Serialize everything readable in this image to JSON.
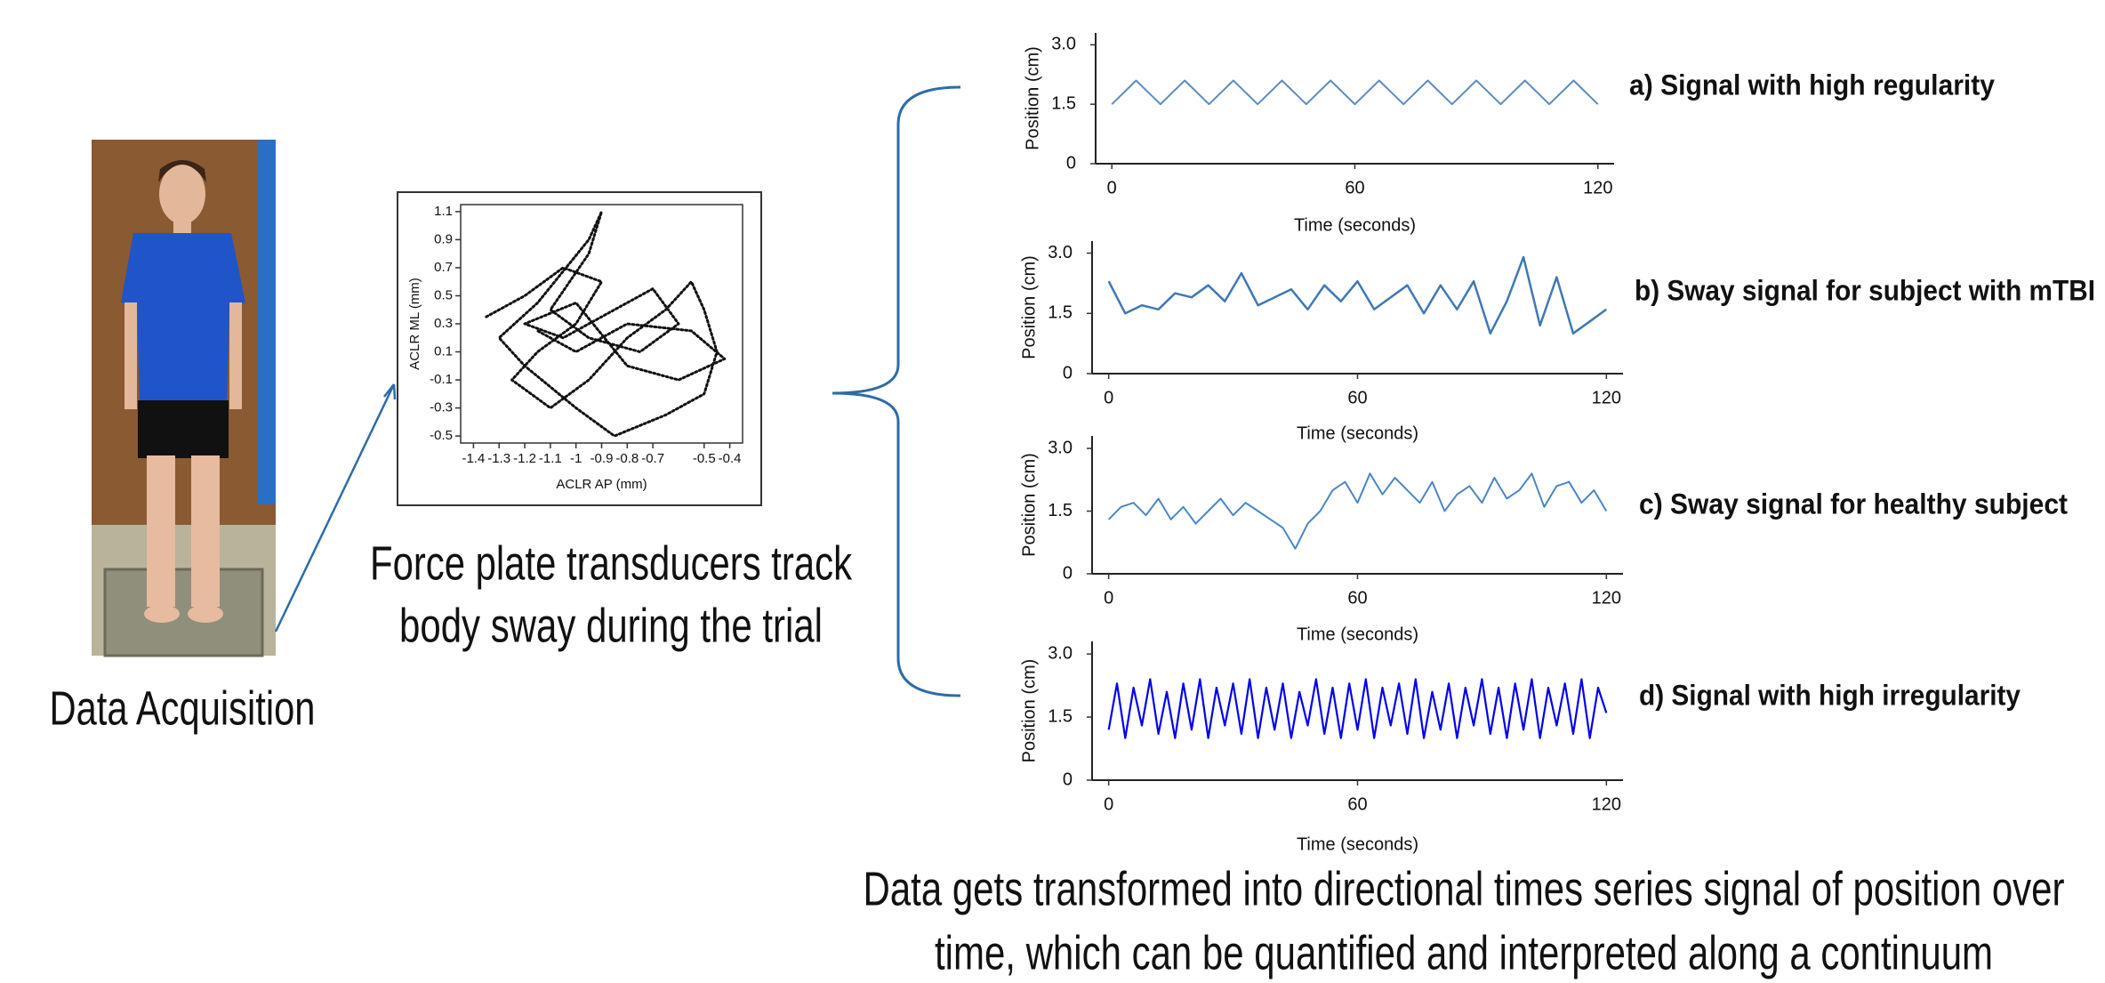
{
  "texts": {
    "acquisition": "Data Acquisition",
    "force_plate_caption": [
      "Force plate transducers track",
      "body sway during the trial"
    ],
    "transform_caption": [
      "Data gets transformed into directional times series signal of position over",
      "time, which can be quantified and interpreted along a continuum"
    ]
  },
  "chart_data": [
    {
      "type": "line",
      "x_label": "ACLR AP (mm)",
      "y_label": "ACLR ML (mm)",
      "color": "#111111",
      "x": [
        -1.35,
        -1.2,
        -1.05,
        -0.9,
        -1.0,
        -1.15,
        -1.25,
        -1.1,
        -0.95,
        -0.8,
        -0.65,
        -0.55,
        -0.5,
        -0.45,
        -0.5,
        -0.65,
        -0.85,
        -1.0,
        -1.2,
        -1.3,
        -1.15,
        -0.95,
        -0.9,
        -0.95,
        -1.1,
        -0.95,
        -0.75,
        -0.6,
        -0.7,
        -0.85,
        -1.05,
        -1.2,
        -1.0,
        -0.8,
        -0.6,
        -0.42,
        -0.55,
        -0.8,
        -1.0,
        -1.15
      ],
      "values": [
        0.35,
        0.5,
        0.7,
        0.6,
        0.3,
        0.1,
        -0.1,
        -0.3,
        -0.1,
        0.2,
        0.4,
        0.6,
        0.4,
        0.1,
        -0.2,
        -0.35,
        -0.5,
        -0.3,
        0.0,
        0.2,
        0.45,
        0.9,
        1.1,
        0.8,
        0.4,
        0.2,
        0.1,
        0.3,
        0.55,
        0.4,
        0.2,
        0.3,
        0.45,
        0.0,
        -0.1,
        0.05,
        0.25,
        0.3,
        0.1,
        0.25
      ],
      "xlim": [
        -1.45,
        -0.35
      ],
      "ylim": [
        -0.55,
        1.15
      ],
      "xticks": [
        -1.4,
        -1.3,
        -1.2,
        -1.1,
        -1,
        -0.9,
        -0.8,
        -0.7,
        -0.5,
        -0.4
      ],
      "yticks": [
        1.1,
        0.9,
        0.7,
        0.5,
        0.3,
        0.1,
        -0.1,
        -0.3,
        -0.5
      ]
    },
    {
      "type": "line",
      "title": "a) Signal with high regularity",
      "x_label": "Time (seconds)",
      "y_label": "Position (cm)",
      "color": "#5b8bc0",
      "x": [
        0,
        3,
        6,
        9,
        12,
        15,
        18,
        21,
        24,
        27,
        30,
        33,
        36,
        39,
        42,
        45,
        48,
        51,
        54,
        57,
        60,
        63,
        66,
        69,
        72,
        75,
        78,
        81,
        84,
        87,
        90,
        93,
        96,
        99,
        102,
        105,
        108,
        111,
        114,
        117,
        120
      ],
      "values": [
        1.5,
        1.8,
        2.1,
        1.8,
        1.5,
        1.8,
        2.1,
        1.8,
        1.5,
        1.8,
        2.1,
        1.8,
        1.5,
        1.8,
        2.1,
        1.8,
        1.5,
        1.8,
        2.1,
        1.8,
        1.5,
        1.8,
        2.1,
        1.8,
        1.5,
        1.8,
        2.1,
        1.8,
        1.5,
        1.8,
        2.1,
        1.8,
        1.5,
        1.8,
        2.1,
        1.8,
        1.5,
        1.8,
        2.1,
        1.8,
        1.5
      ],
      "xlim": [
        -4,
        124
      ],
      "ylim": [
        0,
        3.3
      ],
      "xticks": [
        0,
        60,
        120
      ],
      "yticks": [
        0,
        1.5,
        {
          "value": 3,
          "label": "3.0"
        }
      ]
    },
    {
      "type": "line",
      "title": "b) Sway signal for subject with mTBI",
      "x_label": "Time (seconds)",
      "y_label": "Position (cm)",
      "color": "#3f78b5",
      "x": [
        0,
        4,
        8,
        12,
        16,
        20,
        24,
        28,
        32,
        36,
        40,
        44,
        48,
        52,
        56,
        60,
        64,
        68,
        72,
        76,
        80,
        84,
        88,
        92,
        96,
        100,
        104,
        108,
        112,
        116,
        120
      ],
      "values": [
        2.3,
        1.5,
        1.7,
        1.6,
        2.0,
        1.9,
        2.2,
        1.8,
        2.5,
        1.7,
        1.9,
        2.1,
        1.6,
        2.2,
        1.8,
        2.3,
        1.6,
        1.9,
        2.2,
        1.5,
        2.2,
        1.6,
        2.3,
        1.0,
        1.8,
        2.9,
        1.2,
        2.4,
        1.0,
        1.3,
        1.6
      ],
      "xlim": [
        -4,
        124
      ],
      "ylim": [
        0,
        3.3
      ],
      "xticks": [
        0,
        60,
        120
      ],
      "yticks": [
        0,
        1.5,
        {
          "value": 3,
          "label": "3.0"
        }
      ]
    },
    {
      "type": "line",
      "title": "c) Sway signal for healthy subject",
      "x_label": "Time (seconds)",
      "y_label": "Position (cm)",
      "color": "#4a86c5",
      "x": [
        0,
        3,
        6,
        9,
        12,
        15,
        18,
        21,
        24,
        27,
        30,
        33,
        36,
        39,
        42,
        45,
        48,
        51,
        54,
        57,
        60,
        63,
        66,
        69,
        72,
        75,
        78,
        81,
        84,
        87,
        90,
        93,
        96,
        99,
        102,
        105,
        108,
        111,
        114,
        117,
        120
      ],
      "values": [
        1.3,
        1.6,
        1.7,
        1.4,
        1.8,
        1.3,
        1.6,
        1.2,
        1.5,
        1.8,
        1.4,
        1.7,
        1.5,
        1.3,
        1.1,
        0.6,
        1.2,
        1.5,
        2.0,
        2.2,
        1.7,
        2.4,
        1.9,
        2.3,
        2.0,
        1.7,
        2.2,
        1.5,
        1.9,
        2.1,
        1.7,
        2.3,
        1.8,
        2.0,
        2.4,
        1.6,
        2.1,
        2.2,
        1.7,
        2.0,
        1.5
      ],
      "xlim": [
        -4,
        124
      ],
      "ylim": [
        0,
        3.3
      ],
      "xticks": [
        0,
        60,
        120
      ],
      "yticks": [
        0,
        1.5,
        {
          "value": 3,
          "label": "3.0"
        }
      ]
    },
    {
      "type": "line",
      "title": "d) Signal with high irregularity",
      "x_label": "Time (seconds)",
      "y_label": "Position (cm)",
      "color": "#0000ee",
      "x": [
        0,
        2,
        4,
        6,
        8,
        10,
        12,
        14,
        16,
        18,
        20,
        22,
        24,
        26,
        28,
        30,
        32,
        34,
        36,
        38,
        40,
        42,
        44,
        46,
        48,
        50,
        52,
        54,
        56,
        58,
        60,
        62,
        64,
        66,
        68,
        70,
        72,
        74,
        76,
        78,
        80,
        82,
        84,
        86,
        88,
        90,
        92,
        94,
        96,
        98,
        100,
        102,
        104,
        106,
        108,
        110,
        112,
        114,
        116,
        118,
        120
      ],
      "values": [
        1.2,
        2.3,
        1.0,
        2.2,
        1.3,
        2.4,
        1.1,
        2.1,
        1.0,
        2.3,
        1.2,
        2.4,
        1.0,
        2.2,
        1.3,
        2.3,
        1.1,
        2.4,
        1.0,
        2.2,
        1.2,
        2.3,
        1.0,
        2.1,
        1.3,
        2.4,
        1.1,
        2.2,
        1.0,
        2.3,
        1.2,
        2.4,
        1.0,
        2.2,
        1.3,
        2.3,
        1.1,
        2.4,
        1.0,
        2.1,
        1.2,
        2.3,
        1.0,
        2.2,
        1.3,
        2.4,
        1.1,
        2.2,
        1.0,
        2.3,
        1.2,
        2.4,
        1.0,
        2.2,
        1.3,
        2.3,
        1.1,
        2.4,
        1.0,
        2.2,
        1.6
      ],
      "xlim": [
        -4,
        124
      ],
      "ylim": [
        0,
        3.3
      ],
      "xticks": [
        0,
        60,
        120
      ],
      "yticks": [
        0,
        1.5,
        {
          "value": 3,
          "label": "3.0"
        }
      ]
    }
  ]
}
